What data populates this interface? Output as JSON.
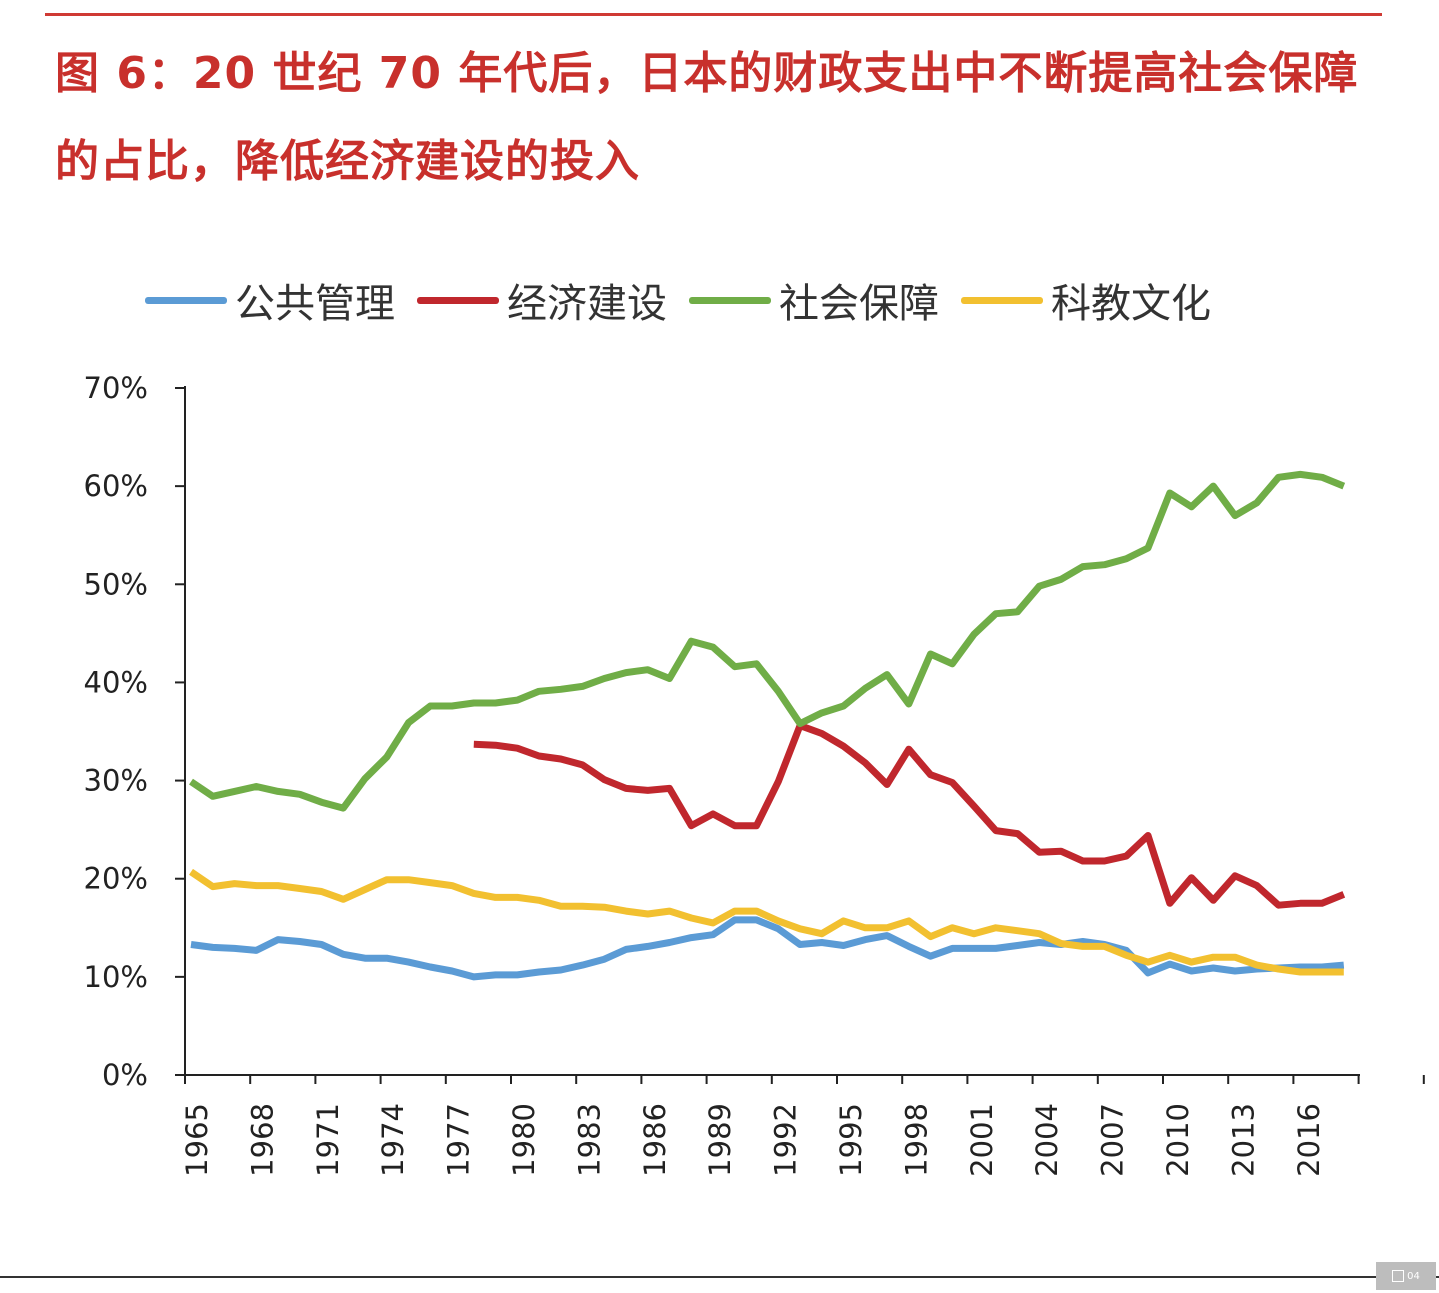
{
  "title": "图 6：20 世纪 70 年代后，日本的财政支出中不断提高社会保障的占比，降低经济建设的投入",
  "badge": "04",
  "chart_data": {
    "type": "line",
    "title": "",
    "xlabel": "",
    "ylabel": "",
    "ylim": [
      0,
      70
    ],
    "grid": false,
    "legend_position": "top",
    "y_ticks": [
      0,
      10,
      20,
      30,
      40,
      50,
      60,
      70
    ],
    "y_tick_labels": [
      "0%",
      "10%",
      "20%",
      "30%",
      "40%",
      "50%",
      "60%",
      "70%"
    ],
    "x_tick_labels": [
      "1965",
      "1968",
      "1971",
      "1974",
      "1977",
      "1980",
      "1983",
      "1986",
      "1989",
      "1992",
      "1995",
      "1998",
      "2001",
      "2004",
      "2007",
      "2010",
      "2013",
      "2016"
    ],
    "x": [
      1965,
      1966,
      1967,
      1968,
      1969,
      1970,
      1971,
      1972,
      1973,
      1974,
      1975,
      1976,
      1977,
      1978,
      1979,
      1980,
      1981,
      1982,
      1983,
      1984,
      1985,
      1986,
      1987,
      1988,
      1989,
      1990,
      1991,
      1992,
      1993,
      1994,
      1995,
      1996,
      1997,
      1998,
      1999,
      2000,
      2001,
      2002,
      2003,
      2004,
      2005,
      2006,
      2007,
      2008,
      2009,
      2010,
      2011,
      2012,
      2013,
      2014,
      2015,
      2016,
      2017,
      2018
    ],
    "series": [
      {
        "name": "公共管理",
        "color": "#5b9bd5",
        "values": [
          13.3,
          13.0,
          12.9,
          12.7,
          13.8,
          13.6,
          13.3,
          12.3,
          11.9,
          11.9,
          11.5,
          11.0,
          10.6,
          10.0,
          10.2,
          10.2,
          10.5,
          10.7,
          11.2,
          11.8,
          12.8,
          13.1,
          13.5,
          14.0,
          14.3,
          15.8,
          15.8,
          14.9,
          13.3,
          13.5,
          13.2,
          13.8,
          14.2,
          13.1,
          12.1,
          12.9,
          12.9,
          12.9,
          13.2,
          13.5,
          13.3,
          13.6,
          13.3,
          12.7,
          10.4,
          11.3,
          10.6,
          10.9,
          10.6,
          10.8,
          10.9,
          11.0,
          11.0,
          11.2
        ]
      },
      {
        "name": "经济建设",
        "color": "#c0272d",
        "values": [
          null,
          null,
          null,
          null,
          null,
          null,
          null,
          null,
          null,
          null,
          null,
          null,
          null,
          33.7,
          33.6,
          33.3,
          32.5,
          32.2,
          31.6,
          30.1,
          29.2,
          29.0,
          29.2,
          25.4,
          26.6,
          25.4,
          25.4,
          29.9,
          35.6,
          34.8,
          33.5,
          31.8,
          29.6,
          33.2,
          30.6,
          29.8,
          27.4,
          24.9,
          24.6,
          22.7,
          22.8,
          21.8,
          21.8,
          22.3,
          24.4,
          17.5,
          20.1,
          17.8,
          20.3,
          19.3,
          17.3,
          17.5,
          17.5,
          18.4
        ]
      },
      {
        "name": "社会保障",
        "color": "#70ad47",
        "values": [
          29.9,
          28.4,
          28.9,
          29.4,
          28.9,
          28.6,
          27.8,
          27.2,
          30.2,
          32.4,
          35.9,
          37.6,
          37.6,
          37.9,
          37.9,
          38.2,
          39.1,
          39.3,
          39.6,
          40.4,
          41.0,
          41.3,
          40.4,
          44.2,
          43.6,
          41.6,
          41.9,
          39.1,
          35.8,
          36.9,
          37.6,
          39.4,
          40.8,
          37.8,
          42.9,
          41.9,
          44.9,
          47.0,
          47.2,
          49.8,
          50.5,
          51.8,
          52.0,
          52.6,
          53.7,
          59.3,
          57.9,
          60.0,
          57.0,
          58.3,
          60.9,
          61.2,
          60.9,
          60.0
        ]
      },
      {
        "name": "科教文化",
        "color": "#f2c030",
        "values": [
          20.7,
          19.2,
          19.5,
          19.3,
          19.3,
          19.0,
          18.7,
          17.9,
          18.9,
          19.9,
          19.9,
          19.6,
          19.3,
          18.5,
          18.1,
          18.1,
          17.8,
          17.2,
          17.2,
          17.1,
          16.7,
          16.4,
          16.7,
          16.0,
          15.5,
          16.7,
          16.7,
          15.7,
          14.9,
          14.4,
          15.7,
          15.0,
          15.0,
          15.7,
          14.1,
          15.0,
          14.4,
          15.0,
          14.7,
          14.4,
          13.4,
          13.1,
          13.1,
          12.2,
          11.5,
          12.2,
          11.5,
          12.0,
          12.0,
          11.2,
          10.8,
          10.5,
          10.5,
          10.5
        ]
      }
    ]
  }
}
